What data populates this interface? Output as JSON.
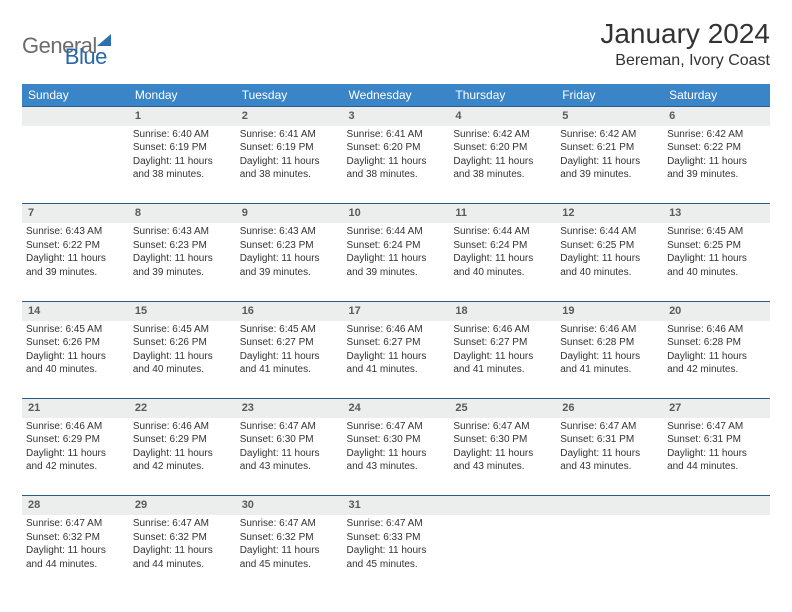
{
  "logo": {
    "part1": "General",
    "part2": "Blue"
  },
  "title": "January 2024",
  "location": "Bereman, Ivory Coast",
  "styling": {
    "header_bg": "#3a85c8",
    "header_fg": "#ffffff",
    "daynum_bg": "#eceded",
    "daynum_border": "#2a5c8a",
    "body_bg": "#ffffff",
    "text_color": "#333333",
    "logo_gray": "#6c6c6c",
    "logo_blue": "#2968a8",
    "title_fontsize": 28,
    "location_fontsize": 16,
    "dayhead_fontsize": 12,
    "daynum_fontsize": 11,
    "cell_fontsize": 10,
    "columns": 7,
    "rows": 5
  },
  "day_headers": [
    "Sunday",
    "Monday",
    "Tuesday",
    "Wednesday",
    "Thursday",
    "Friday",
    "Saturday"
  ],
  "weeks": [
    {
      "nums": [
        "",
        "1",
        "2",
        "3",
        "4",
        "5",
        "6"
      ],
      "cells": [
        [],
        [
          "Sunrise: 6:40 AM",
          "Sunset: 6:19 PM",
          "Daylight: 11 hours",
          "and 38 minutes."
        ],
        [
          "Sunrise: 6:41 AM",
          "Sunset: 6:19 PM",
          "Daylight: 11 hours",
          "and 38 minutes."
        ],
        [
          "Sunrise: 6:41 AM",
          "Sunset: 6:20 PM",
          "Daylight: 11 hours",
          "and 38 minutes."
        ],
        [
          "Sunrise: 6:42 AM",
          "Sunset: 6:20 PM",
          "Daylight: 11 hours",
          "and 38 minutes."
        ],
        [
          "Sunrise: 6:42 AM",
          "Sunset: 6:21 PM",
          "Daylight: 11 hours",
          "and 39 minutes."
        ],
        [
          "Sunrise: 6:42 AM",
          "Sunset: 6:22 PM",
          "Daylight: 11 hours",
          "and 39 minutes."
        ]
      ]
    },
    {
      "nums": [
        "7",
        "8",
        "9",
        "10",
        "11",
        "12",
        "13"
      ],
      "cells": [
        [
          "Sunrise: 6:43 AM",
          "Sunset: 6:22 PM",
          "Daylight: 11 hours",
          "and 39 minutes."
        ],
        [
          "Sunrise: 6:43 AM",
          "Sunset: 6:23 PM",
          "Daylight: 11 hours",
          "and 39 minutes."
        ],
        [
          "Sunrise: 6:43 AM",
          "Sunset: 6:23 PM",
          "Daylight: 11 hours",
          "and 39 minutes."
        ],
        [
          "Sunrise: 6:44 AM",
          "Sunset: 6:24 PM",
          "Daylight: 11 hours",
          "and 39 minutes."
        ],
        [
          "Sunrise: 6:44 AM",
          "Sunset: 6:24 PM",
          "Daylight: 11 hours",
          "and 40 minutes."
        ],
        [
          "Sunrise: 6:44 AM",
          "Sunset: 6:25 PM",
          "Daylight: 11 hours",
          "and 40 minutes."
        ],
        [
          "Sunrise: 6:45 AM",
          "Sunset: 6:25 PM",
          "Daylight: 11 hours",
          "and 40 minutes."
        ]
      ]
    },
    {
      "nums": [
        "14",
        "15",
        "16",
        "17",
        "18",
        "19",
        "20"
      ],
      "cells": [
        [
          "Sunrise: 6:45 AM",
          "Sunset: 6:26 PM",
          "Daylight: 11 hours",
          "and 40 minutes."
        ],
        [
          "Sunrise: 6:45 AM",
          "Sunset: 6:26 PM",
          "Daylight: 11 hours",
          "and 40 minutes."
        ],
        [
          "Sunrise: 6:45 AM",
          "Sunset: 6:27 PM",
          "Daylight: 11 hours",
          "and 41 minutes."
        ],
        [
          "Sunrise: 6:46 AM",
          "Sunset: 6:27 PM",
          "Daylight: 11 hours",
          "and 41 minutes."
        ],
        [
          "Sunrise: 6:46 AM",
          "Sunset: 6:27 PM",
          "Daylight: 11 hours",
          "and 41 minutes."
        ],
        [
          "Sunrise: 6:46 AM",
          "Sunset: 6:28 PM",
          "Daylight: 11 hours",
          "and 41 minutes."
        ],
        [
          "Sunrise: 6:46 AM",
          "Sunset: 6:28 PM",
          "Daylight: 11 hours",
          "and 42 minutes."
        ]
      ]
    },
    {
      "nums": [
        "21",
        "22",
        "23",
        "24",
        "25",
        "26",
        "27"
      ],
      "cells": [
        [
          "Sunrise: 6:46 AM",
          "Sunset: 6:29 PM",
          "Daylight: 11 hours",
          "and 42 minutes."
        ],
        [
          "Sunrise: 6:46 AM",
          "Sunset: 6:29 PM",
          "Daylight: 11 hours",
          "and 42 minutes."
        ],
        [
          "Sunrise: 6:47 AM",
          "Sunset: 6:30 PM",
          "Daylight: 11 hours",
          "and 43 minutes."
        ],
        [
          "Sunrise: 6:47 AM",
          "Sunset: 6:30 PM",
          "Daylight: 11 hours",
          "and 43 minutes."
        ],
        [
          "Sunrise: 6:47 AM",
          "Sunset: 6:30 PM",
          "Daylight: 11 hours",
          "and 43 minutes."
        ],
        [
          "Sunrise: 6:47 AM",
          "Sunset: 6:31 PM",
          "Daylight: 11 hours",
          "and 43 minutes."
        ],
        [
          "Sunrise: 6:47 AM",
          "Sunset: 6:31 PM",
          "Daylight: 11 hours",
          "and 44 minutes."
        ]
      ]
    },
    {
      "nums": [
        "28",
        "29",
        "30",
        "31",
        "",
        "",
        ""
      ],
      "cells": [
        [
          "Sunrise: 6:47 AM",
          "Sunset: 6:32 PM",
          "Daylight: 11 hours",
          "and 44 minutes."
        ],
        [
          "Sunrise: 6:47 AM",
          "Sunset: 6:32 PM",
          "Daylight: 11 hours",
          "and 44 minutes."
        ],
        [
          "Sunrise: 6:47 AM",
          "Sunset: 6:32 PM",
          "Daylight: 11 hours",
          "and 45 minutes."
        ],
        [
          "Sunrise: 6:47 AM",
          "Sunset: 6:33 PM",
          "Daylight: 11 hours",
          "and 45 minutes."
        ],
        [],
        [],
        []
      ]
    }
  ]
}
